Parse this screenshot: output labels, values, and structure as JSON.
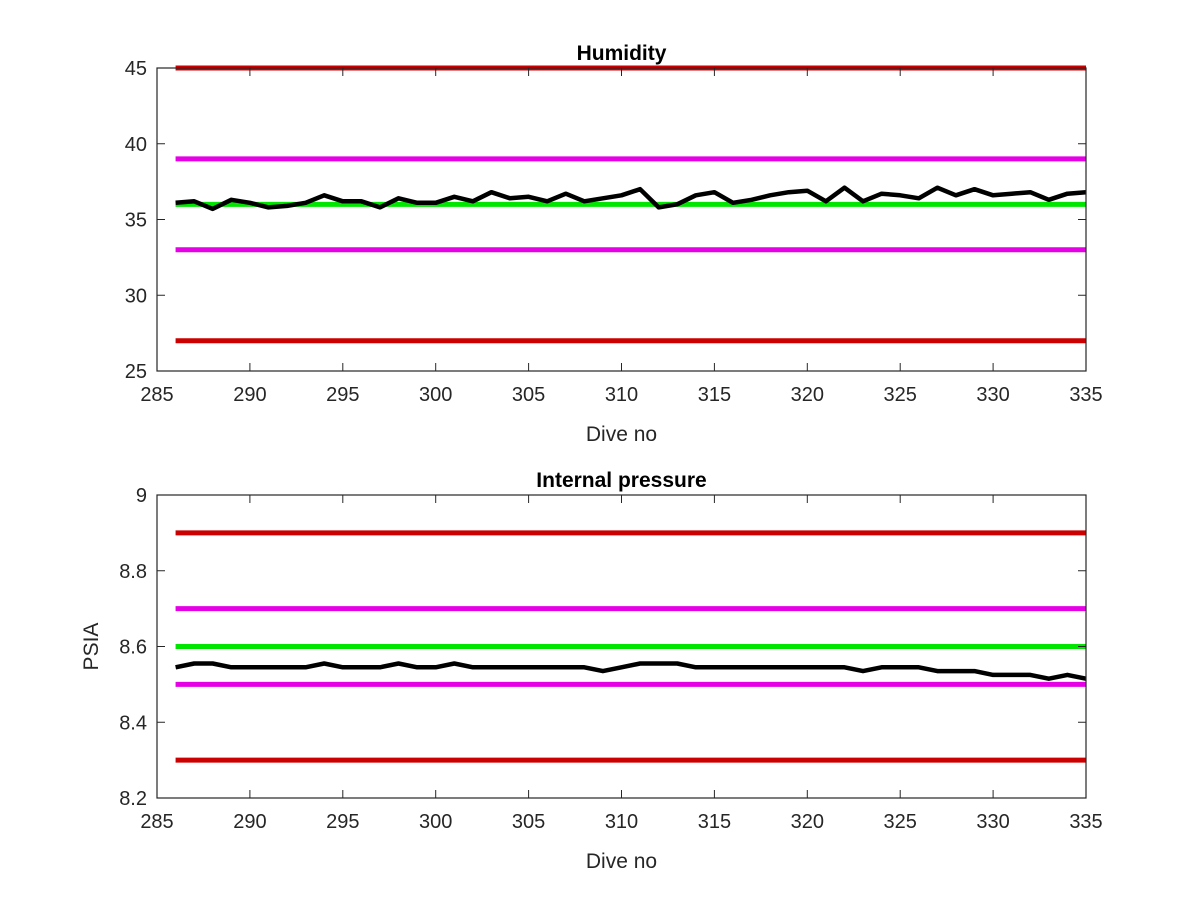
{
  "chart_data": [
    {
      "type": "line",
      "title": "Humidity",
      "xlabel": "Dive no",
      "ylabel": "",
      "xlim": [
        285,
        335
      ],
      "ylim": [
        25,
        45
      ],
      "xticks": [
        285,
        290,
        295,
        300,
        305,
        310,
        315,
        320,
        325,
        330,
        335
      ],
      "yticks": [
        25,
        30,
        35,
        40,
        45
      ],
      "grid": false,
      "thresholds": [
        {
          "color": "#cc0000",
          "value": 45
        },
        {
          "color": "#e600e6",
          "value": 39
        },
        {
          "color": "#00e600",
          "value": 36
        },
        {
          "color": "#e600e6",
          "value": 33
        },
        {
          "color": "#cc0000",
          "value": 27
        }
      ],
      "series": [
        {
          "color": "#000000",
          "x": [
            286,
            287,
            288,
            289,
            290,
            291,
            292,
            293,
            294,
            295,
            296,
            297,
            298,
            299,
            300,
            301,
            302,
            303,
            304,
            305,
            306,
            307,
            308,
            309,
            310,
            311,
            312,
            313,
            314,
            315,
            316,
            317,
            318,
            319,
            320,
            321,
            322,
            323,
            324,
            325,
            326,
            327,
            328,
            329,
            330,
            331,
            332,
            333,
            334,
            335
          ],
          "values": [
            36.1,
            36.2,
            35.7,
            36.3,
            36.1,
            35.8,
            35.9,
            36.1,
            36.6,
            36.2,
            36.2,
            35.8,
            36.4,
            36.1,
            36.1,
            36.5,
            36.2,
            36.8,
            36.4,
            36.5,
            36.2,
            36.7,
            36.2,
            36.4,
            36.6,
            37.0,
            35.8,
            36.0,
            36.6,
            36.8,
            36.1,
            36.3,
            36.6,
            36.8,
            36.9,
            36.2,
            37.1,
            36.2,
            36.7,
            36.6,
            36.4,
            37.1,
            36.6,
            37.0,
            36.6,
            36.7,
            36.8,
            36.3,
            36.7,
            36.8
          ]
        }
      ]
    },
    {
      "type": "line",
      "title": "Internal pressure",
      "xlabel": "Dive no",
      "ylabel": "PSIA",
      "xlim": [
        285,
        335
      ],
      "ylim": [
        8.2,
        9
      ],
      "xticks": [
        285,
        290,
        295,
        300,
        305,
        310,
        315,
        320,
        325,
        330,
        335
      ],
      "yticks": [
        8.2,
        8.4,
        8.6,
        8.8,
        9
      ],
      "grid": false,
      "thresholds": [
        {
          "color": "#cc0000",
          "value": 8.9
        },
        {
          "color": "#e600e6",
          "value": 8.7
        },
        {
          "color": "#00e600",
          "value": 8.6
        },
        {
          "color": "#e600e6",
          "value": 8.5
        },
        {
          "color": "#cc0000",
          "value": 8.3
        }
      ],
      "series": [
        {
          "color": "#000000",
          "x": [
            286,
            287,
            288,
            289,
            290,
            291,
            292,
            293,
            294,
            295,
            296,
            297,
            298,
            299,
            300,
            301,
            302,
            303,
            304,
            305,
            306,
            307,
            308,
            309,
            310,
            311,
            312,
            313,
            314,
            315,
            316,
            317,
            318,
            319,
            320,
            321,
            322,
            323,
            324,
            325,
            326,
            327,
            328,
            329,
            330,
            331,
            332,
            333,
            334,
            335
          ],
          "values": [
            8.545,
            8.555,
            8.555,
            8.545,
            8.545,
            8.545,
            8.545,
            8.545,
            8.555,
            8.545,
            8.545,
            8.545,
            8.555,
            8.545,
            8.545,
            8.555,
            8.545,
            8.545,
            8.545,
            8.545,
            8.545,
            8.545,
            8.545,
            8.535,
            8.545,
            8.555,
            8.555,
            8.555,
            8.545,
            8.545,
            8.545,
            8.545,
            8.545,
            8.545,
            8.545,
            8.545,
            8.545,
            8.535,
            8.545,
            8.545,
            8.545,
            8.535,
            8.535,
            8.535,
            8.525,
            8.525,
            8.525,
            8.515,
            8.525,
            8.515
          ]
        }
      ]
    }
  ]
}
